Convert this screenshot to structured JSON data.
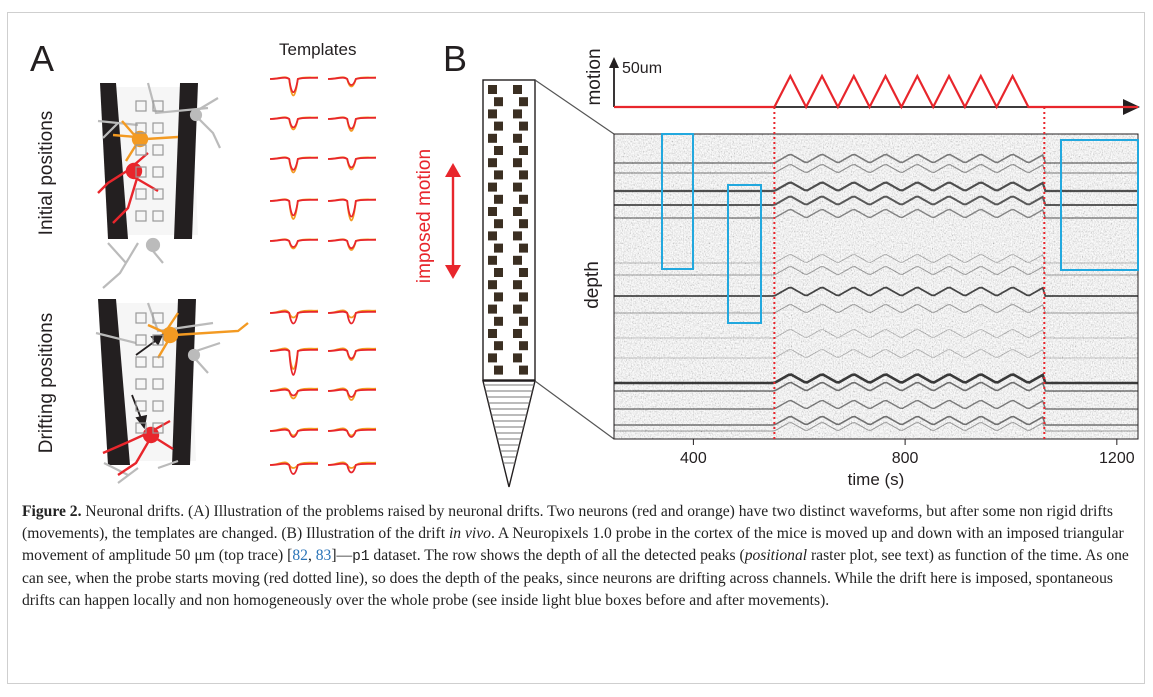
{
  "panel_a": {
    "label": "A",
    "templates_title": "Templates",
    "initial_label": "Initial positions",
    "drifting_label": "Drifting positions"
  },
  "panel_b": {
    "label": "B",
    "imposed_motion_label": "imposed motion",
    "motion_label": "motion",
    "scale_label": "50um",
    "depth_label": "depth",
    "time_label": "time (s)",
    "x_ticks": [
      "400",
      "800",
      "1200"
    ]
  },
  "colors": {
    "red": "#e8262c",
    "orange": "#f39a22",
    "blue": "#22a8de",
    "gray": "#b8b8b8",
    "dark": "#231f20"
  },
  "chart_data": {
    "type": "line",
    "title": "",
    "xlabel": "time (s)",
    "ylabel": "depth",
    "x_ticks": [
      400,
      800,
      1200
    ],
    "motion_trace": {
      "name": "motion",
      "x": [
        250,
        553,
        583,
        613,
        643,
        673,
        703,
        733,
        763,
        793,
        823,
        853,
        883,
        913,
        943,
        973,
        1003,
        1033,
        1063,
        1240
      ],
      "y": [
        0,
        0,
        50,
        0,
        50,
        0,
        50,
        0,
        50,
        0,
        50,
        0,
        50,
        0,
        50,
        0,
        50,
        0,
        0,
        0
      ]
    },
    "motion_window": [
      553,
      1063
    ]
  },
  "caption": {
    "label": "Figure 2.",
    "part1": " Neuronal drifts. (A) Illustration of the problems raised by neuronal drifts. Two neurons (red and orange) have two distinct waveforms, but after some non rigid drifts (movements), the templates are changed. (B) Illustration of the drift ",
    "italic1": "in vivo",
    "part2": ". A Neuropixels 1.0 probe in the cortex of the mice is moved up and down with an imposed triangular movement of amplitude 50 μm (top trace) [",
    "ref1": "82",
    "sep": ", ",
    "ref2": "83",
    "part3": "]—",
    "mono": "p1",
    "part4": " dataset. The row shows the depth of all the detected peaks (",
    "italic2": "positional",
    "part5": " raster plot, see text) as function of the time. As one can see, when the probe starts moving (red dotted line), so does the depth of the peaks, since neurons are drifting across channels. While the drift here is imposed, spontaneous drifts can happen locally and non homogeneously over the whole probe (see inside light blue boxes before and after movements)."
  }
}
